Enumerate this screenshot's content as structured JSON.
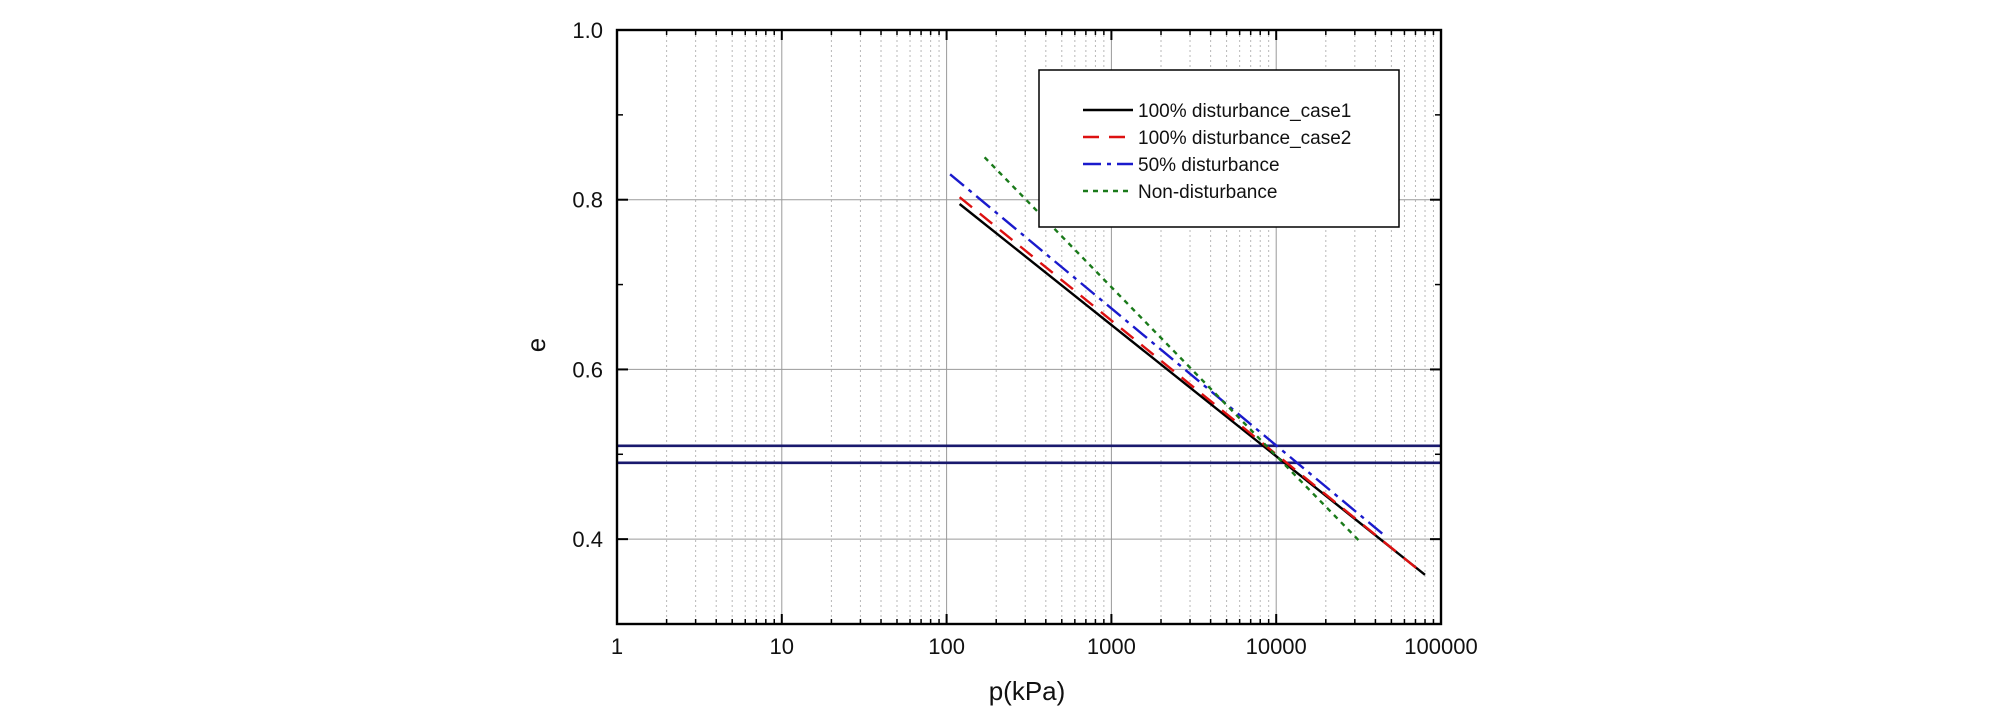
{
  "chart_data": {
    "type": "line",
    "title": "",
    "xlabel": "p(kPa)",
    "ylabel": "e",
    "xscale": "log",
    "xlim": [
      1,
      100000
    ],
    "ylim": [
      0.3,
      1.0
    ],
    "grid": true,
    "legend_position": "top-right",
    "x_tick_labels": [
      "1",
      "10",
      "100",
      "1000",
      "10000",
      "100000"
    ],
    "y_tick_labels": [
      "0.4",
      "0.6",
      "0.8",
      "1.0"
    ],
    "y_tick_values": [
      0.4,
      0.6,
      0.8,
      1.0
    ],
    "series": [
      {
        "name": "100% disturbance_case1",
        "style": "solid",
        "color": "#000000",
        "x": [
          120,
          80000
        ],
        "y": [
          0.795,
          0.358
        ]
      },
      {
        "name": "100% disturbance_case2",
        "style": "dashed",
        "color": "#dd1111",
        "x": [
          120,
          75000
        ],
        "y": [
          0.803,
          0.362
        ]
      },
      {
        "name": "50% disturbance",
        "style": "dashdot",
        "color": "#1a1acc",
        "x": [
          105,
          45000
        ],
        "y": [
          0.83,
          0.405
        ]
      },
      {
        "name": "Non-disturbance",
        "style": "dotted",
        "color": "#1a7a1a",
        "x": [
          170,
          33000
        ],
        "y": [
          0.85,
          0.395
        ]
      }
    ],
    "reference_lines": [
      {
        "axis": "y",
        "value": 0.51,
        "color": "#1a1a6e"
      },
      {
        "axis": "y",
        "value": 0.49,
        "color": "#1a1a6e"
      }
    ]
  }
}
